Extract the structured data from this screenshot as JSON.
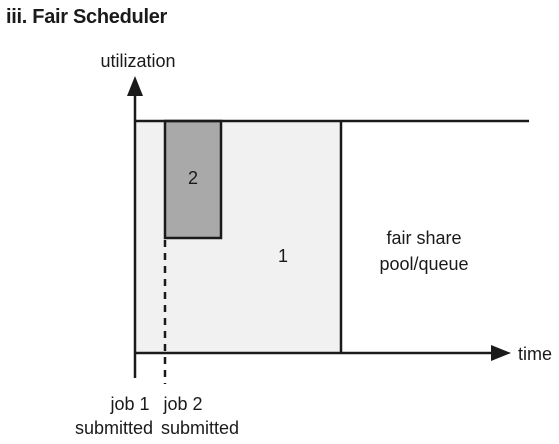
{
  "title": "iii. Fair Scheduler",
  "axes": {
    "y_label": "utilization",
    "x_label": "time"
  },
  "blocks": {
    "job1_label": "1",
    "job2_label": "2",
    "free_area_label_line1": "fair share",
    "free_area_label_line2": "pool/queue"
  },
  "markers": {
    "job1_line1": "job 1",
    "job1_line2": "submitted",
    "job2_line1": "job 2",
    "job2_line2": "submitted"
  },
  "colors": {
    "job1_fill": "#f1f1f1",
    "job2_fill": "#a9a9a9",
    "stroke": "#1a1a1a"
  }
}
